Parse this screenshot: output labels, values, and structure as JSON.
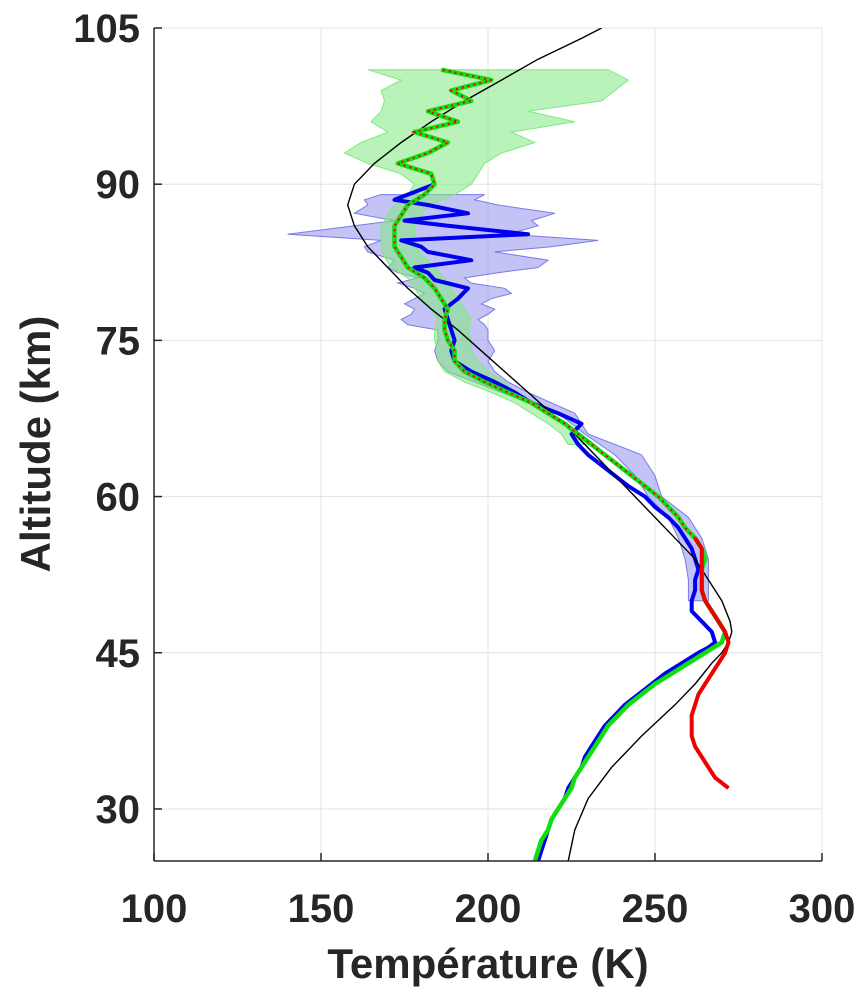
{
  "chart_data": {
    "type": "line",
    "title": "",
    "xlabel": "Température (K)",
    "ylabel": "Altitude (km)",
    "xlim": [
      100,
      300
    ],
    "ylim": [
      25,
      105
    ],
    "xticks": [
      "100",
      "150",
      "200",
      "250",
      "300"
    ],
    "yticks": [
      "30",
      "45",
      "60",
      "75",
      "90",
      "105"
    ],
    "grid": true,
    "legend": "none",
    "colors": {
      "model": "#000000",
      "blue": "#0000ee",
      "blue_band": "#7a7ae8",
      "green": "#11dd11",
      "green_band": "#7fea7f",
      "red": "#ee0000"
    },
    "series": [
      {
        "id": "model",
        "style": "thin-black",
        "y": [
          25,
          28,
          31,
          34,
          37,
          40,
          42,
          44,
          45,
          46,
          47,
          48,
          50,
          52,
          54,
          56,
          58,
          60,
          62,
          64,
          66,
          68,
          70,
          72,
          74,
          76,
          78,
          80,
          82,
          84,
          86,
          88,
          90,
          92,
          94,
          96,
          98,
          100,
          102,
          104,
          105
        ],
        "x": [
          224,
          226,
          230,
          237,
          246,
          256,
          262,
          267,
          270,
          272,
          273,
          272.5,
          270,
          266,
          262,
          256,
          250,
          244,
          238,
          232,
          226,
          219,
          212,
          205,
          198,
          191,
          183,
          176,
          170,
          164,
          160,
          158,
          160,
          166,
          174,
          183,
          193,
          204,
          215,
          228,
          234
        ]
      },
      {
        "id": "blue",
        "style": "thick",
        "y": [
          25,
          26,
          27,
          28,
          29,
          30,
          31,
          32,
          33,
          34,
          35,
          36,
          37,
          38,
          39,
          40,
          41,
          42,
          43,
          44,
          45,
          45.5,
          46,
          47,
          48,
          49,
          50,
          51,
          52,
          53,
          54,
          55,
          56,
          57,
          58,
          59,
          60,
          61,
          62,
          63,
          64,
          65,
          66,
          67,
          68,
          69,
          70,
          71,
          72,
          73,
          74,
          75,
          76,
          77,
          78,
          79,
          80,
          80.8,
          81.5,
          82,
          82.7,
          83.5,
          84,
          84.6,
          85.2,
          86,
          86.5,
          87.2,
          88,
          88.5,
          89,
          90
        ],
        "x": [
          215,
          216,
          217,
          218,
          219,
          221,
          223,
          224,
          226,
          228,
          229,
          231,
          233,
          235,
          238,
          241,
          245,
          249,
          253,
          258,
          263,
          266,
          268,
          267,
          264,
          261,
          261,
          262,
          262,
          263,
          262,
          261,
          259,
          257,
          254,
          250,
          247,
          242,
          238,
          234,
          230,
          227,
          225,
          228,
          221,
          213,
          208,
          202,
          195,
          190,
          189,
          190,
          189,
          188,
          187,
          191,
          194,
          184,
          182,
          178,
          195,
          182,
          180,
          174,
          212,
          188,
          175,
          194,
          182,
          172,
          176,
          184
        ]
      },
      {
        "id": "blue_band",
        "style": "band",
        "y": [
          50,
          52,
          54,
          56,
          58,
          60,
          62,
          64,
          66,
          68,
          70,
          71,
          72,
          73,
          74,
          75,
          76,
          76.5,
          77,
          77.5,
          78,
          78.5,
          79,
          79.5,
          80,
          80.5,
          81,
          81.5,
          82,
          82.7,
          83.5,
          84,
          84.6,
          85.2,
          86,
          86.5,
          87.2,
          88,
          88.5,
          89
        ],
        "xlow": [
          260,
          260,
          259,
          257,
          254,
          248,
          244,
          238,
          229,
          221,
          204,
          196,
          188,
          185,
          184,
          185,
          185,
          176,
          174,
          177,
          178,
          175,
          178,
          181,
          178,
          173,
          179,
          173,
          170,
          172,
          164,
          163,
          168,
          140,
          160,
          172,
          160,
          164,
          163,
          168
        ],
        "xhigh": [
          266,
          266,
          266,
          264,
          260,
          252,
          250,
          246,
          230,
          226,
          212,
          206,
          202,
          200,
          202,
          200,
          200,
          199,
          197,
          200,
          202,
          198,
          201,
          207,
          205,
          195,
          193,
          203,
          215,
          218,
          202,
          219,
          233,
          206,
          215,
          213,
          220,
          203,
          196,
          199
        ]
      },
      {
        "id": "green",
        "style": "thick",
        "y": [
          25,
          26,
          27,
          28,
          29,
          30,
          31,
          32,
          33,
          34,
          35,
          36,
          37,
          38,
          39,
          40,
          41,
          42,
          43,
          44,
          45,
          46,
          47,
          48,
          49,
          50,
          51,
          52,
          53,
          54,
          55,
          56,
          57,
          58,
          59,
          60,
          61,
          62,
          63,
          64,
          65,
          66,
          67,
          68,
          69,
          70,
          71,
          72,
          73,
          74,
          75,
          76,
          77,
          78,
          79,
          80,
          81,
          82,
          83,
          84,
          85,
          86,
          87,
          88,
          89,
          90,
          91,
          92,
          93,
          94,
          95,
          96,
          97,
          98,
          99,
          100,
          101
        ],
        "x": [
          214,
          215,
          216,
          218,
          219,
          221,
          223,
          225,
          226,
          228,
          230,
          232,
          234,
          236,
          239,
          242,
          246,
          250,
          255,
          260,
          265,
          270,
          271,
          269,
          267,
          265,
          264,
          264,
          264,
          265,
          264,
          262,
          259,
          257,
          254,
          251,
          247,
          243,
          239,
          235,
          231,
          227,
          223,
          218,
          213,
          206,
          199,
          193,
          190,
          190,
          188,
          187,
          187,
          188,
          186,
          184,
          181,
          176,
          174,
          172,
          172,
          172,
          174,
          176,
          181,
          184,
          183,
          173,
          182,
          188,
          178,
          191,
          182,
          195,
          189,
          201,
          186
        ]
      },
      {
        "id": "green_band",
        "style": "band",
        "y": [
          65,
          66,
          67,
          68,
          69,
          70,
          71,
          72,
          73,
          74,
          75,
          76,
          77,
          78,
          79,
          80,
          81,
          82,
          83,
          84,
          85,
          86,
          87,
          88,
          89,
          90,
          91,
          92,
          93,
          94,
          95,
          96,
          97,
          98,
          99,
          100,
          101
        ],
        "xlow": [
          224,
          222,
          218,
          213,
          208,
          201,
          193,
          187,
          185,
          185,
          184,
          184,
          185,
          183,
          180,
          178,
          176,
          171,
          169,
          168,
          168,
          168,
          170,
          172,
          176,
          178,
          174,
          164,
          157,
          162,
          170,
          165,
          168,
          169,
          168,
          174,
          164
        ],
        "xhigh": [
          232,
          228,
          223,
          218,
          213,
          208,
          205,
          200,
          197,
          195,
          195,
          194,
          195,
          193,
          191,
          189,
          187,
          184,
          181,
          178,
          178,
          178,
          180,
          182,
          190,
          195,
          197,
          199,
          204,
          214,
          207,
          226,
          212,
          234,
          238,
          242,
          236
        ]
      },
      {
        "id": "red",
        "style": "thick",
        "y": [
          32,
          33,
          34,
          35,
          36,
          37,
          38,
          39,
          40,
          41,
          42,
          43,
          44,
          45,
          46,
          47,
          48,
          49,
          50,
          51,
          52,
          53,
          54,
          55,
          56
        ],
        "x": [
          272,
          268,
          266,
          264,
          262,
          261,
          261,
          261,
          262,
          263,
          265,
          267,
          269,
          271,
          272,
          271,
          269,
          267,
          265,
          264,
          264,
          264,
          264,
          264,
          262
        ]
      },
      {
        "id": "red_dotted",
        "style": "dotted",
        "y": [
          56,
          57,
          58,
          59,
          60,
          61,
          62,
          63,
          64,
          65,
          66,
          67,
          68,
          69,
          70,
          71,
          72,
          73,
          74,
          75,
          76,
          77,
          78,
          79,
          80,
          81,
          82,
          83,
          84,
          85,
          86,
          87,
          88,
          89,
          90,
          91,
          92,
          93,
          94,
          95,
          96,
          97,
          98,
          99,
          100,
          101
        ],
        "x": [
          262,
          259,
          257,
          254,
          251,
          247,
          243,
          239,
          235,
          231,
          227,
          223,
          218,
          213,
          206,
          199,
          193,
          190,
          190,
          188,
          187,
          187,
          188,
          186,
          184,
          181,
          176,
          174,
          172,
          172,
          172,
          174,
          176,
          181,
          184,
          183,
          173,
          182,
          188,
          178,
          191,
          182,
          195,
          189,
          201,
          186
        ]
      }
    ]
  }
}
